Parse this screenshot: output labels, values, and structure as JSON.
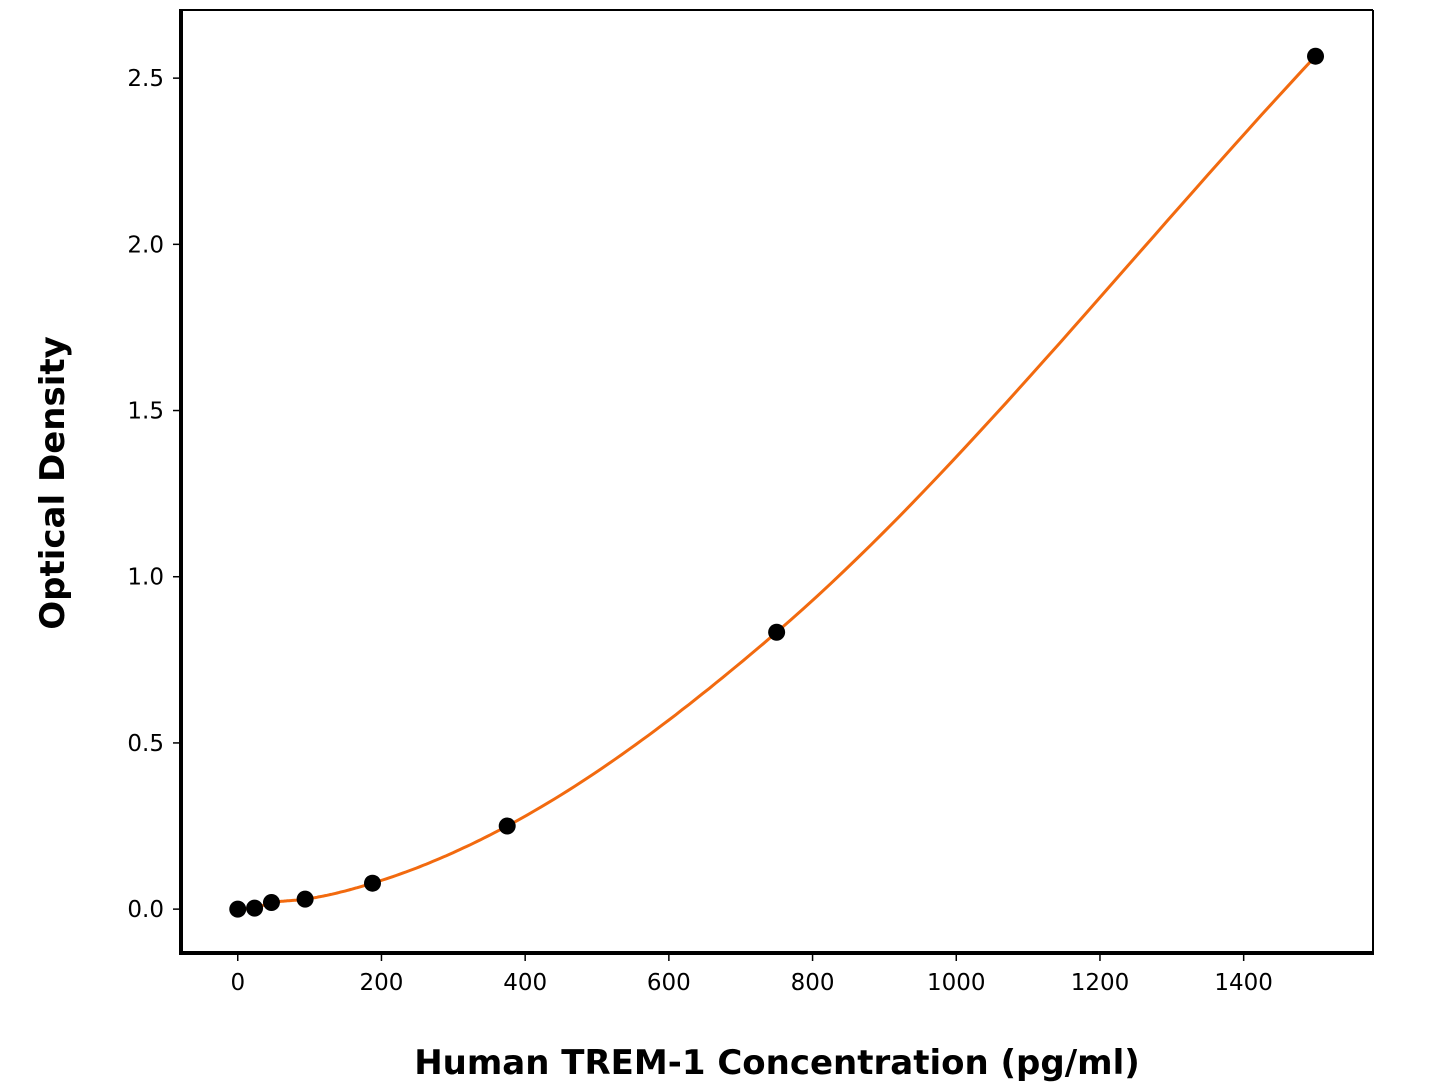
{
  "chart_data": {
    "type": "scatter",
    "title": "",
    "xlabel": "Human TREM-1 Concentration (pg/ml)",
    "ylabel": "Optical Density",
    "xlim": [
      -79,
      1580
    ],
    "ylim": [
      -0.132,
      2.705
    ],
    "xticks": [
      0,
      200,
      400,
      600,
      800,
      1000,
      1200,
      1400
    ],
    "yticks": [
      0.0,
      0.5,
      1.0,
      1.5,
      2.0,
      2.5
    ],
    "ytick_labels": [
      "0.0",
      "0.5",
      "1.0",
      "1.5",
      "2.0",
      "2.5"
    ],
    "grid": false,
    "points": {
      "x": [
        0,
        23.4,
        46.9,
        93.75,
        187.5,
        375,
        750,
        1500
      ],
      "y": [
        0.0,
        0.003,
        0.02,
        0.03,
        0.078,
        0.25,
        0.833,
        2.566
      ],
      "color": "#000000"
    },
    "fit_curve": {
      "type": "line",
      "color": "#f26a0f"
    }
  }
}
